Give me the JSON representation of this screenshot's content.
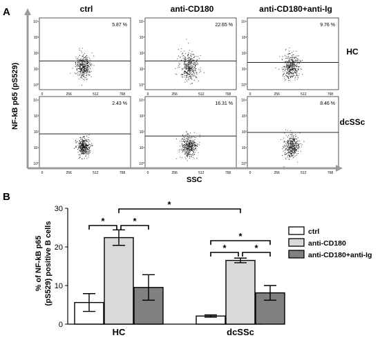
{
  "panel_a": {
    "label": "A",
    "column_headers": [
      "ctrl",
      "anti-CD180",
      "anti-CD180+anti-Ig"
    ],
    "row_labels": [
      "HC",
      "dcSSc"
    ],
    "y_axis_label": "NF-kB p65 (pS529)",
    "x_axis_label": "SSC",
    "y_ticks": [
      "10⁰",
      "10¹",
      "10²",
      "10³",
      "10⁴"
    ],
    "x_ticks": [
      "0",
      "256",
      "512",
      "768"
    ],
    "percentages": [
      [
        "5.87 %",
        "22.65 %",
        "9.76 %"
      ],
      [
        "2.43 %",
        "16.31 %",
        "8.46 %"
      ]
    ]
  },
  "chart_data": {
    "type": "bar",
    "label": "B",
    "categories": [
      "HC",
      "dcSSc"
    ],
    "series": [
      {
        "name": "ctrl",
        "color": "#ffffff",
        "values": [
          5.6,
          2.1
        ],
        "errors": [
          2.3,
          0.3
        ]
      },
      {
        "name": "anti-CD180",
        "color": "#d9d9d9",
        "values": [
          22.4,
          16.5
        ],
        "errors": [
          2.0,
          0.6
        ]
      },
      {
        "name": "anti-CD180+anti-Ig",
        "color": "#808080",
        "values": [
          9.5,
          8.1
        ],
        "errors": [
          3.3,
          1.9
        ]
      }
    ],
    "ylabel_line1": "% of NF-kB p65",
    "ylabel_line2": "(pS529) positive B cells",
    "ylim": [
      0,
      30
    ],
    "yticks": [
      "0",
      "10",
      "20",
      "30"
    ],
    "significance_marker": "*"
  }
}
